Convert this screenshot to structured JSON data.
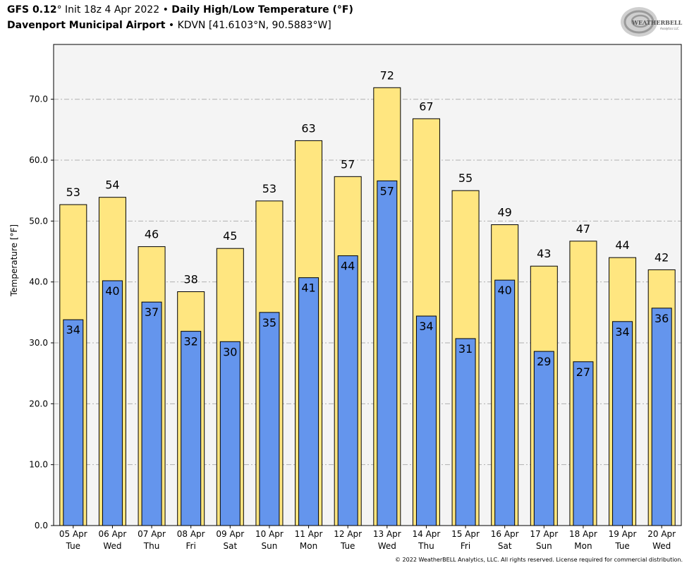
{
  "header": {
    "model": "GFS 0.12",
    "init_text": "° Init 18z 4 Apr 2022 • ",
    "product": "Daily High/Low Temperature (°F)",
    "station": "Davenport Municipal Airport",
    "station_info": " • KDVN [41.6103°N, 90.5883°W]"
  },
  "logo": {
    "text_main": "WEATHERBELL",
    "text_sub": "Analytics LLC"
  },
  "footer": {
    "copyright": "© 2022 WeatherBELL Analytics, LLC. All rights reserved. License required for commercial distribution."
  },
  "chart_data": {
    "type": "bar",
    "ylabel": "Temperature [°F]",
    "ylim": [
      0,
      79
    ],
    "yticks": [
      0,
      10,
      20,
      30,
      40,
      50,
      60,
      70
    ],
    "ytick_labels": [
      "0.0",
      "10.0",
      "20.0",
      "30.0",
      "40.0",
      "50.0",
      "60.0",
      "70.0"
    ],
    "grid": true,
    "categories": [
      "05 Apr",
      "06 Apr",
      "07 Apr",
      "08 Apr",
      "09 Apr",
      "10 Apr",
      "11 Apr",
      "12 Apr",
      "13 Apr",
      "14 Apr",
      "15 Apr",
      "16 Apr",
      "17 Apr",
      "18 Apr",
      "19 Apr",
      "20 Apr"
    ],
    "weekdays": [
      "Tue",
      "Wed",
      "Thu",
      "Fri",
      "Sat",
      "Sun",
      "Mon",
      "Tue",
      "Wed",
      "Thu",
      "Fri",
      "Sat",
      "Sun",
      "Mon",
      "Tue",
      "Wed"
    ],
    "series": [
      {
        "name": "High",
        "color": "#ffe680",
        "values": [
          52.7,
          53.9,
          45.8,
          38.4,
          45.5,
          53.3,
          63.2,
          57.3,
          71.9,
          66.8,
          55.0,
          49.4,
          42.6,
          46.7,
          44.0,
          42.0
        ],
        "labels": [
          "53",
          "54",
          "46",
          "38",
          "45",
          "53",
          "63",
          "57",
          "72",
          "67",
          "55",
          "49",
          "43",
          "47",
          "44",
          "42"
        ]
      },
      {
        "name": "Low",
        "color": "#6495ed",
        "values": [
          33.8,
          40.2,
          36.7,
          31.9,
          30.2,
          35.0,
          40.7,
          44.3,
          56.6,
          34.4,
          30.7,
          40.3,
          28.6,
          26.9,
          33.5,
          35.7
        ],
        "labels": [
          "34",
          "40",
          "37",
          "32",
          "30",
          "35",
          "41",
          "44",
          "57",
          "34",
          "31",
          "40",
          "29",
          "27",
          "34",
          "36"
        ]
      }
    ]
  }
}
